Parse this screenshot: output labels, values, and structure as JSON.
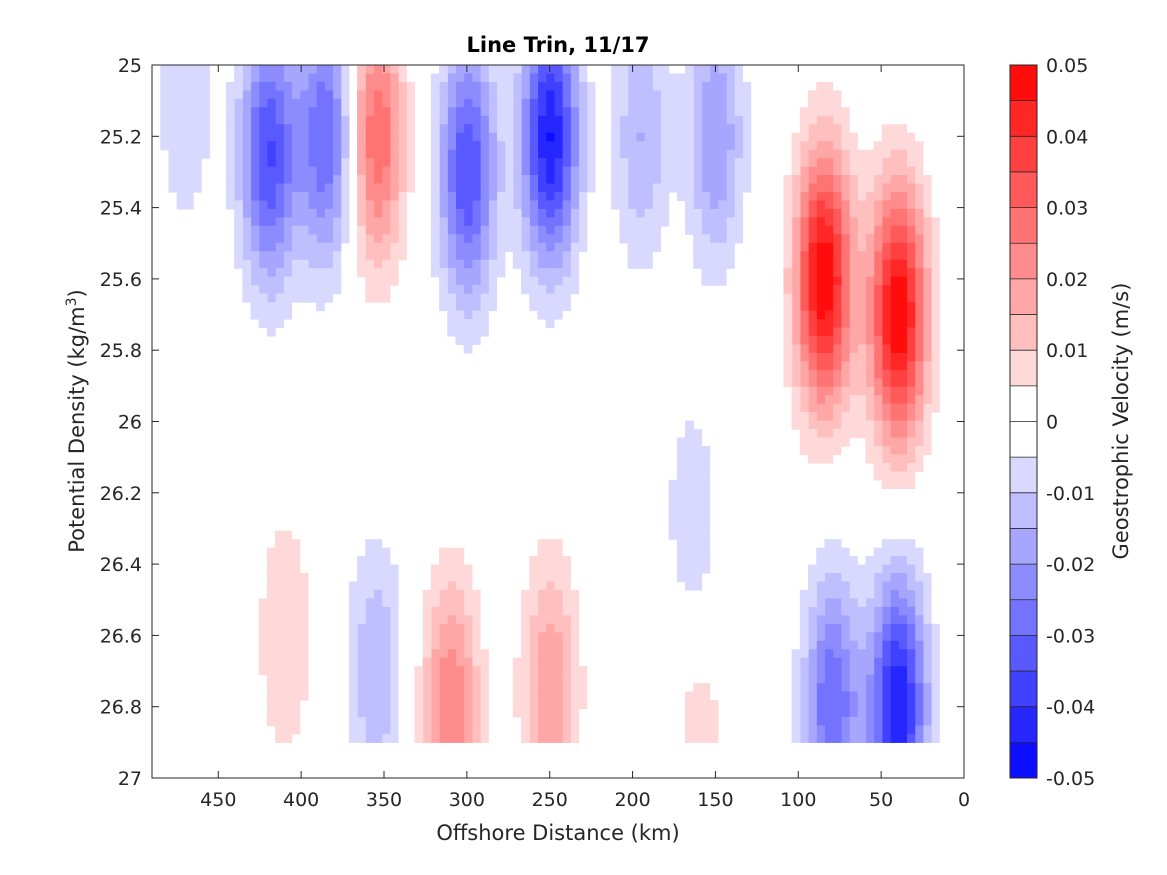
{
  "chart_data": {
    "type": "heatmap",
    "title": "Line Trin, 11/17",
    "xlabel": "Offshore Distance (km)",
    "ylabel": "Potential Density (kg/m",
    "ylabel_sup": "3",
    "ylabel_close": ")",
    "xlim": [
      490,
      0
    ],
    "ylim": [
      25,
      27
    ],
    "x_ticks": [
      450,
      400,
      350,
      300,
      250,
      200,
      150,
      100,
      50,
      0
    ],
    "x_tick_labels": [
      "450",
      "400",
      "350",
      "300",
      "250",
      "200",
      "150",
      "100",
      "50",
      "0"
    ],
    "y_ticks": [
      25,
      25.2,
      25.4,
      25.6,
      25.8,
      26,
      26.2,
      26.4,
      26.6,
      26.8,
      27
    ],
    "y_tick_labels": [
      "25",
      "25.2",
      "25.4",
      "25.6",
      "25.8",
      "26",
      "26.2",
      "26.4",
      "26.6",
      "26.8",
      "27"
    ],
    "grid": false,
    "colorbar": {
      "label": "Geostrophic Velocity (m/s)",
      "ticks": [
        0.05,
        0.04,
        0.03,
        0.02,
        0.01,
        0,
        -0.01,
        -0.02,
        -0.03,
        -0.04,
        -0.05
      ],
      "tick_labels": [
        "0.05",
        "0.04",
        "0.03",
        "0.02",
        "0.01",
        "0",
        "-0.01",
        "-0.02",
        "-0.03",
        "-0.04",
        "-0.05"
      ],
      "range": [
        -0.05,
        0.05
      ],
      "levels": 20,
      "colors": {
        "negative": "#0000ff",
        "zero": "#ffffff",
        "positive": "#ff0000"
      }
    },
    "data_extent": {
      "x": [
        10,
        485
      ],
      "y": [
        25,
        26.9
      ]
    },
    "features": [
      {
        "x": 420,
        "y": 25.25,
        "value": -0.035
      },
      {
        "x": 385,
        "y": 25.2,
        "value": -0.03
      },
      {
        "x": 355,
        "y": 25.2,
        "value": 0.03
      },
      {
        "x": 300,
        "y": 25.3,
        "value": -0.035
      },
      {
        "x": 250,
        "y": 25.2,
        "value": -0.045
      },
      {
        "x": 195,
        "y": 25.2,
        "value": -0.015
      },
      {
        "x": 150,
        "y": 25.2,
        "value": -0.02
      },
      {
        "x": 85,
        "y": 25.6,
        "value": 0.05
      },
      {
        "x": 40,
        "y": 25.7,
        "value": 0.05
      },
      {
        "x": 410,
        "y": 26.6,
        "value": 0.01
      },
      {
        "x": 310,
        "y": 26.8,
        "value": 0.025
      },
      {
        "x": 250,
        "y": 26.75,
        "value": 0.02
      },
      {
        "x": 355,
        "y": 26.7,
        "value": -0.015
      },
      {
        "x": 80,
        "y": 26.8,
        "value": -0.03
      },
      {
        "x": 40,
        "y": 26.8,
        "value": -0.045
      },
      {
        "x": 195,
        "y": 26.45,
        "value": 0.005
      },
      {
        "x": 160,
        "y": 26.85,
        "value": 0.008
      },
      {
        "x": 165,
        "y": 26.3,
        "value": -0.01
      },
      {
        "x": 470,
        "y": 25.1,
        "value": -0.01
      }
    ]
  }
}
